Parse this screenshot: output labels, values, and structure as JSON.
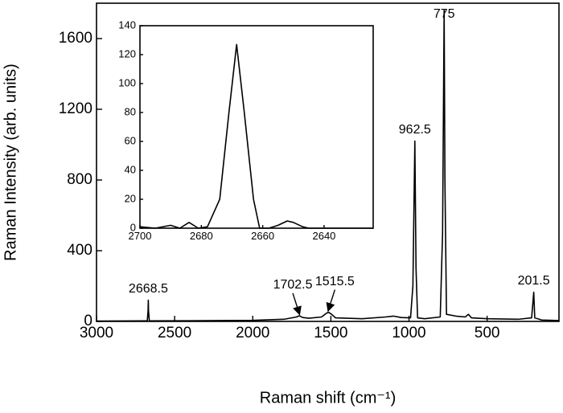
{
  "chart_data": [
    {
      "type": "line",
      "xlabel": "Raman shift (cm⁻¹)",
      "ylabel": "Raman Intensity (arb. units)",
      "x": [
        3000,
        2700,
        2675,
        2670,
        2668.5,
        2667,
        2662,
        2400,
        2000,
        1800,
        1720,
        1702.5,
        1680,
        1640,
        1560,
        1530,
        1515.5,
        1495,
        1470,
        1300,
        1150,
        1100,
        1050,
        990,
        975,
        962.5,
        955,
        945,
        900,
        800,
        785,
        775,
        770,
        760,
        700,
        640,
        620,
        600,
        500,
        300,
        215,
        201.5,
        195,
        150,
        40
      ],
      "series": [
        {
          "color": "#000000",
          "values": [
            2,
            3,
            3,
            60,
            120,
            60,
            3,
            4,
            6,
            12,
            25,
            32,
            22,
            18,
            25,
            45,
            52,
            40,
            20,
            15,
            25,
            30,
            22,
            20,
            200,
            1020,
            300,
            20,
            15,
            25,
            500,
            1760,
            800,
            40,
            30,
            25,
            40,
            20,
            15,
            12,
            20,
            165,
            20,
            8,
            5
          ]
        }
      ],
      "xlim": [
        3000,
        40
      ],
      "xticks": [
        3000,
        2500,
        2000,
        1500,
        1000,
        500
      ],
      "ylim": [
        0,
        1800
      ],
      "yticks": [
        0,
        400,
        800,
        1200,
        1600
      ],
      "annotations": [
        {
          "text": "2668.5",
          "x": 2668.5,
          "y": 120
        },
        {
          "text": "1702.5",
          "x": 1702.5,
          "y": 32,
          "arrow": true
        },
        {
          "text": "1515.5",
          "x": 1515.5,
          "y": 52,
          "arrow": true
        },
        {
          "text": "962.5",
          "x": 962.5,
          "y": 1020
        },
        {
          "text": "775",
          "x": 775,
          "y": 1760
        },
        {
          "text": "201.5",
          "x": 201.5,
          "y": 165
        }
      ]
    },
    {
      "type": "line",
      "x": [
        2700,
        2695,
        2690,
        2687,
        2684,
        2681,
        2678,
        2674,
        2671,
        2668.5,
        2666,
        2663,
        2661,
        2658,
        2655,
        2652,
        2650,
        2647,
        2645,
        2630,
        2624
      ],
      "series": [
        {
          "color": "#000000",
          "values": [
            1,
            0,
            2,
            0,
            4,
            0,
            1,
            20,
            80,
            127,
            80,
            20,
            0,
            0,
            2,
            5,
            4,
            1,
            0,
            0,
            0
          ]
        }
      ],
      "xlim": [
        2700,
        2624
      ],
      "xticks": [
        2700,
        2680,
        2660,
        2640
      ],
      "ylim": [
        0,
        140
      ],
      "yticks": [
        0,
        20,
        40,
        60,
        80,
        100,
        120,
        140
      ]
    }
  ]
}
